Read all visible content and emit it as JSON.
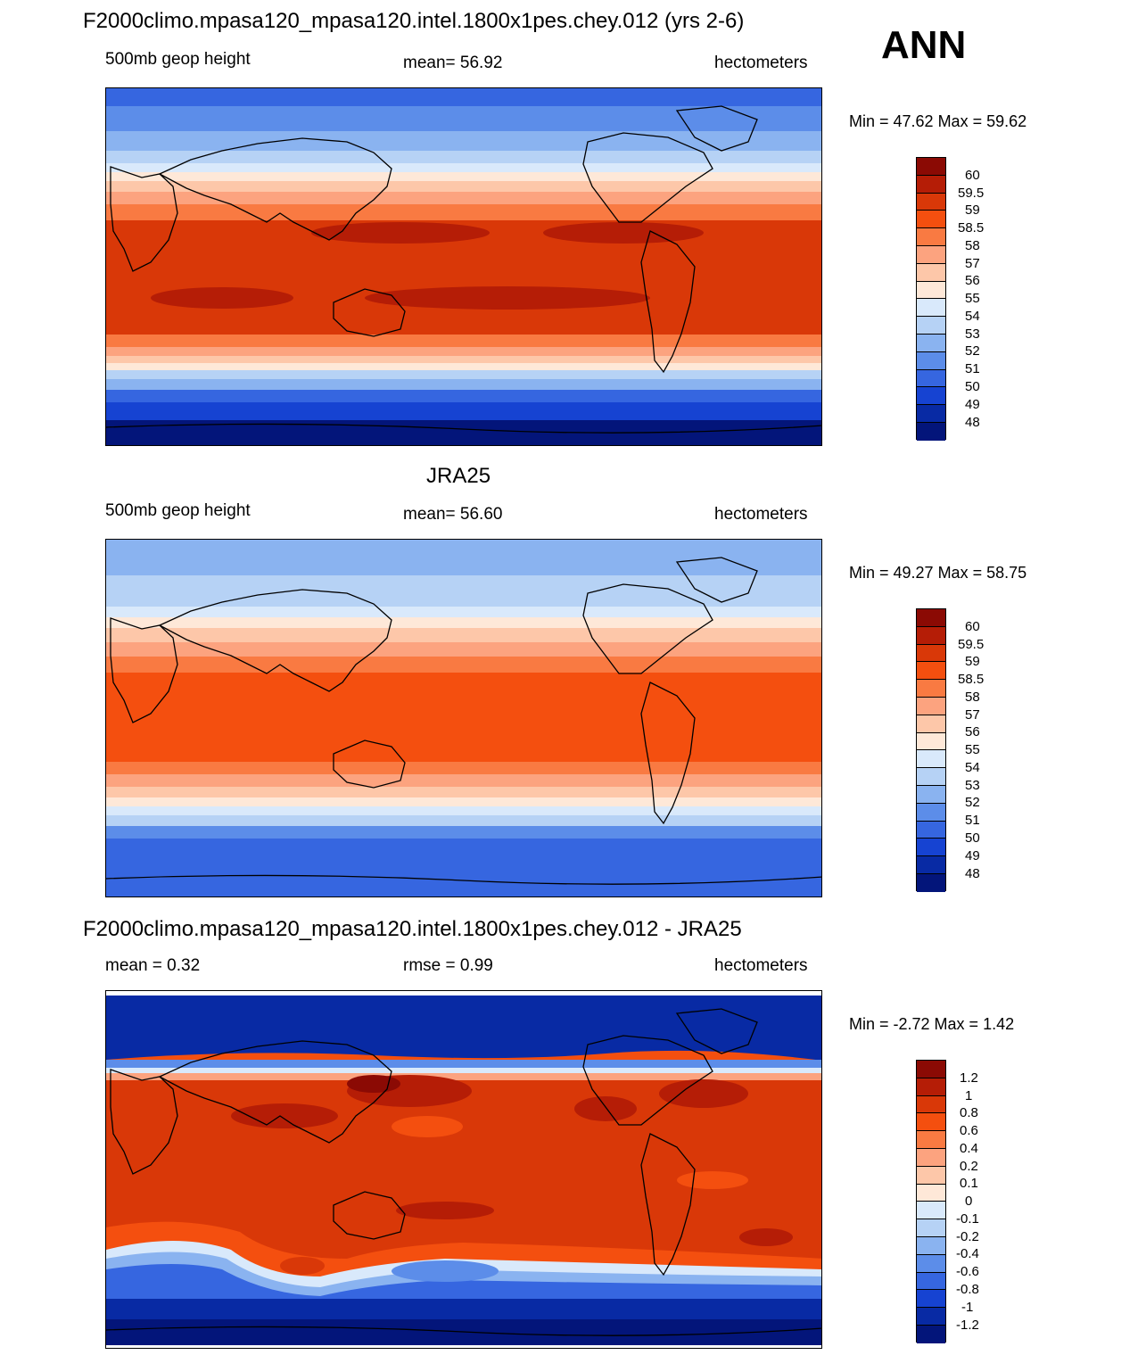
{
  "season": "ANN",
  "panels": [
    {
      "title": "F2000climo.mpasa120_mpasa120.intel.1800x1pes.chey.012 (yrs 2-6)",
      "left_text": "500mb geop height",
      "center_text": "mean=  56.92",
      "right_text": "hectometers",
      "minmax": "Min =  47.62 Max =  59.62",
      "colorbar_labels": [
        "60",
        "59.5",
        "59",
        "58.5",
        "58",
        "57",
        "56",
        "55",
        "54",
        "53",
        "52",
        "51",
        "50",
        "49",
        "48"
      ]
    },
    {
      "title": "JRA25",
      "left_text": "500mb geop height",
      "center_text": "mean=  56.60",
      "right_text": "hectometers",
      "minmax": "Min =  49.27 Max =  58.75",
      "colorbar_labels": [
        "60",
        "59.5",
        "59",
        "58.5",
        "58",
        "57",
        "56",
        "55",
        "54",
        "53",
        "52",
        "51",
        "50",
        "49",
        "48"
      ]
    },
    {
      "title": "F2000climo.mpasa120_mpasa120.intel.1800x1pes.chey.012 - JRA25",
      "left_text": "mean =   0.32",
      "center_text": "rmse =   0.99",
      "right_text": "hectometers",
      "minmax": "Min =  -2.72 Max =   1.42",
      "colorbar_labels": [
        "1.2",
        "1",
        "0.8",
        "0.6",
        "0.4",
        "0.2",
        "0.1",
        "0",
        "-0.1",
        "-0.2",
        "-0.4",
        "-0.6",
        "-0.8",
        "-1",
        "-1.2"
      ]
    }
  ],
  "colors": {
    "scale": [
      "#8b0a04",
      "#b51d06",
      "#d93808",
      "#f44f0f",
      "#f97a42",
      "#fca37f",
      "#fdc7a9",
      "#fee8d8",
      "#d9e9fb",
      "#b6d2f5",
      "#8ab3f0",
      "#5c8de9",
      "#3666e0",
      "#1643d2",
      "#082aa4",
      "#03157a"
    ]
  }
}
